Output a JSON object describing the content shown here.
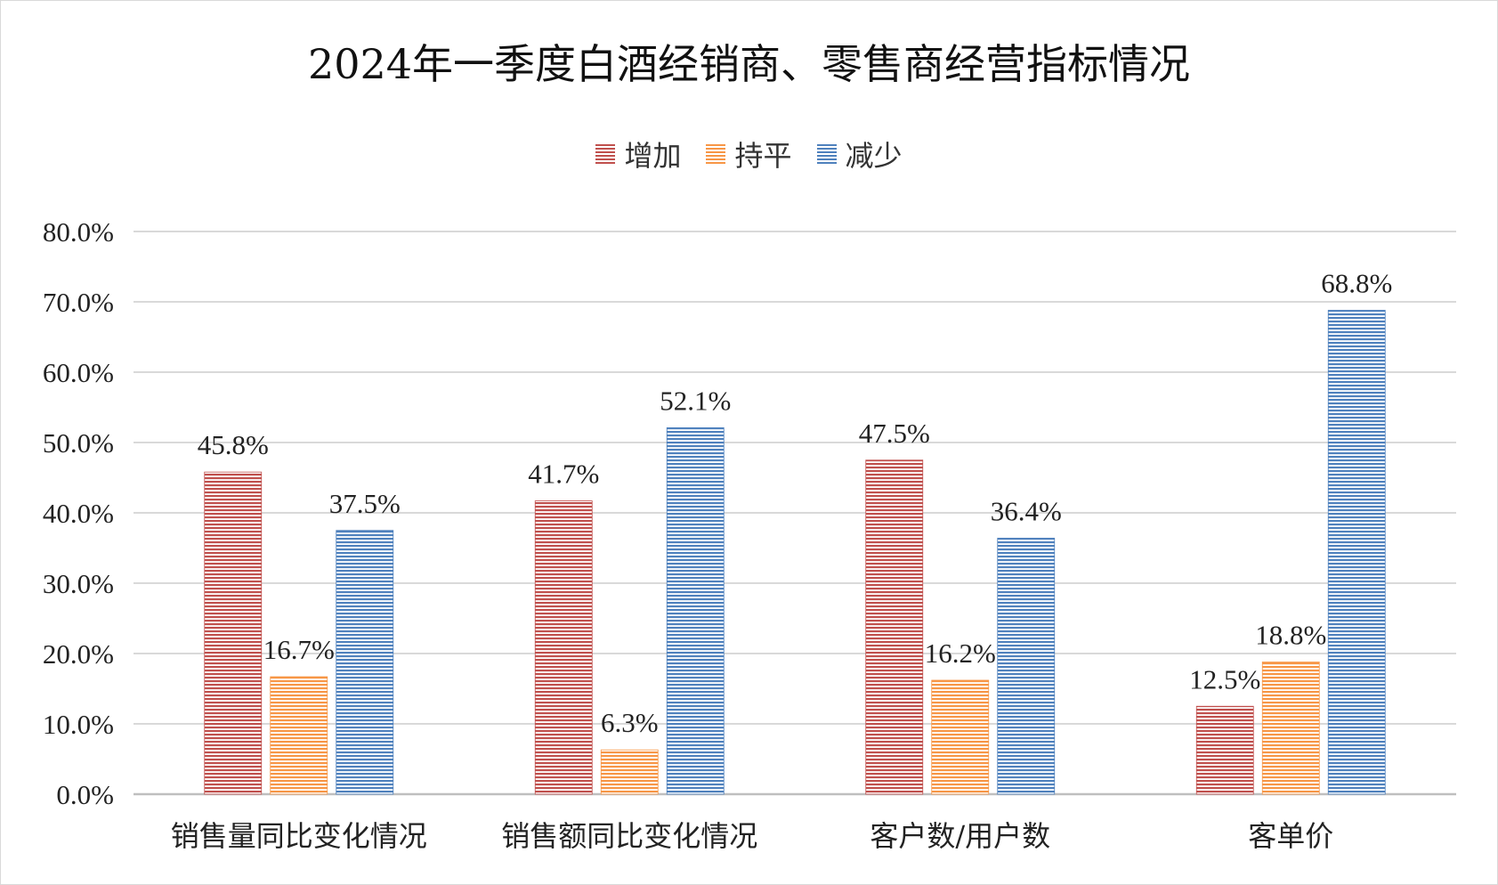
{
  "chart_data": {
    "type": "bar",
    "title": "2024年一季度白酒经销商、零售商经营指标情况",
    "categories": [
      "销售量同比变化情况",
      "销售额同比变化情况",
      "客户数/用户数",
      "客单价"
    ],
    "series": [
      {
        "name": "增加",
        "color": "#c0504d",
        "values": [
          45.8,
          41.7,
          47.5,
          12.5
        ],
        "labels": [
          "45.8%",
          "41.7%",
          "47.5%",
          "12.5%"
        ]
      },
      {
        "name": "持平",
        "color": "#f79646",
        "values": [
          16.7,
          6.3,
          16.2,
          18.8
        ],
        "labels": [
          "16.7%",
          "6.3%",
          "16.2%",
          "18.8%"
        ]
      },
      {
        "name": "减少",
        "color": "#4f81bd",
        "values": [
          37.5,
          52.1,
          36.4,
          68.8
        ],
        "labels": [
          "37.5%",
          "52.1%",
          "36.4%",
          "68.8%"
        ]
      }
    ],
    "ylim": [
      0,
      80
    ],
    "yticks": [
      "0.0%",
      "10.0%",
      "20.0%",
      "30.0%",
      "40.0%",
      "50.0%",
      "60.0%",
      "70.0%",
      "80.0%"
    ],
    "grid": true,
    "legend": "top-center"
  }
}
